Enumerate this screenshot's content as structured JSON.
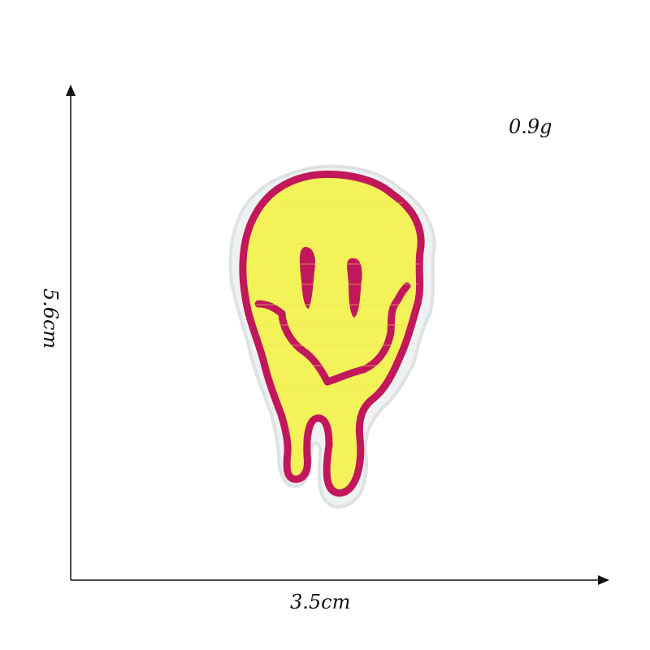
{
  "measurements": {
    "weight": "0.9g",
    "height": "5.6cm",
    "width": "3.5cm"
  },
  "colors": {
    "background": "#ffffff",
    "axis": "#111111",
    "patch_fill": "#f4f259",
    "patch_outline": "#c2185b",
    "patch_backing": "#eef2f2"
  },
  "image": {
    "subject": "melting-smiley-patch-icon"
  }
}
